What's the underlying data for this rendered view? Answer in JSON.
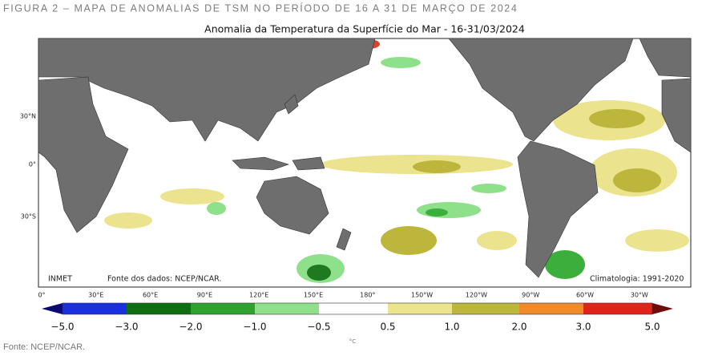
{
  "caption": "FIGURA 2 – MAPA DE ANOMALIAS DE TSM NO PERÍODO DE 16 A 31 DE MARÇO DE 2024",
  "map": {
    "title": "Anomalia da Temperatura da Superfície do Mar - 16-31/03/2024",
    "lat_labels": [
      "30°N",
      "0°",
      "30°S"
    ],
    "lon_labels": [
      "0°",
      "30°E",
      "60°E",
      "90°E",
      "120°E",
      "150°E",
      "180°",
      "150°W",
      "120°W",
      "90°W",
      "60°W",
      "30°W"
    ],
    "credits": {
      "left": "INMET",
      "data_source": "Fonte dos dados: NCEP/NCAR.",
      "climatology": "Climatologia: 1991-2020"
    },
    "colorbar": {
      "labels": [
        "−5.0",
        "−3.0",
        "−2.0",
        "−1.0",
        "−0.5",
        "0.5",
        "1.0",
        "2.0",
        "3.0",
        "5.0"
      ],
      "unit": "°C"
    }
  },
  "source": "Fonte: NCEP/NCAR."
}
